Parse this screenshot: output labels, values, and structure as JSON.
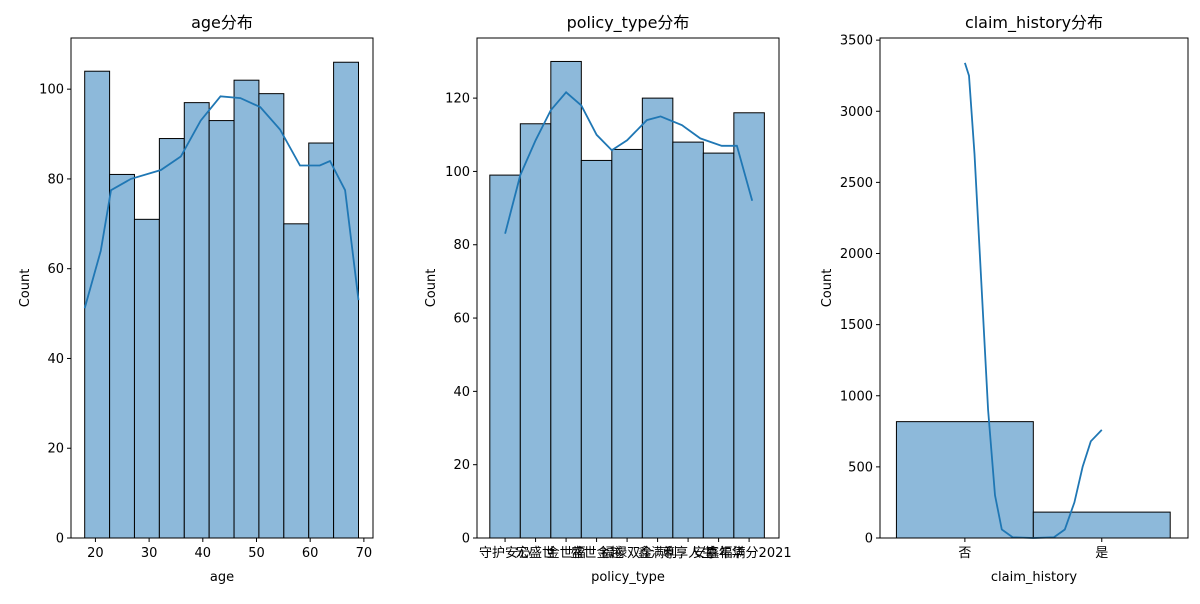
{
  "chart_data": [
    {
      "type": "histogram",
      "title": "age分布",
      "xlabel": "age",
      "ylabel": "Count",
      "bins": [
        18,
        22.64,
        27.27,
        31.91,
        36.55,
        41.18,
        45.82,
        50.45,
        55.09,
        59.73,
        64.36,
        69
      ],
      "values": [
        104,
        81,
        71,
        89,
        97,
        93,
        102,
        99,
        70,
        88,
        106
      ],
      "color": "#8db9da",
      "line_color": "#1f77b4",
      "kde": {
        "x": [
          18,
          21,
          22.9,
          26.6,
          32.2,
          35.9,
          39.6,
          43.3,
          47,
          50.7,
          54.4,
          58.1,
          61.8,
          63.7,
          66.5,
          69
        ],
        "values": [
          51.2,
          64,
          77.5,
          80,
          82,
          85,
          93,
          98.4,
          98,
          96,
          91,
          83,
          83,
          84,
          77.5,
          53
        ]
      },
      "xlim": [
        15.45,
        71.7
      ],
      "xticks": [
        20,
        30,
        40,
        50,
        60,
        70
      ],
      "ylim": [
        0,
        111.4
      ],
      "yticks": [
        0,
        20,
        40,
        60,
        80,
        100
      ]
    },
    {
      "type": "bar",
      "title": "policy_type分布",
      "xlabel": "policy_type",
      "ylabel": "Count",
      "categories": [
        "守护安心",
        "宏盛世",
        "金世福",
        "盛世金越",
        "福禄双全",
        "鑫满利",
        "尊享人生",
        "安享年华",
        "鑫福满分2021"
      ],
      "values": [
        99,
        113,
        130,
        103,
        106,
        120,
        108,
        105,
        116
      ],
      "color": "#8db9da",
      "line_color": "#1f77b4",
      "kde": {
        "x": [
          0,
          0.5,
          1,
          1.5,
          2,
          2.5,
          3,
          3.5,
          4,
          4.65,
          5.1,
          5.8,
          6.4,
          7.1,
          7.6,
          8.1
        ],
        "values": [
          83,
          99,
          108.5,
          116.7,
          121.6,
          118,
          110,
          105.8,
          108.5,
          114,
          115,
          112.6,
          109,
          107,
          107,
          92
        ]
      },
      "xlim": [
        -0.92,
        8.98
      ],
      "ylim": [
        0,
        136.4
      ],
      "yticks": [
        0,
        20,
        40,
        60,
        80,
        100,
        120
      ]
    },
    {
      "type": "bar",
      "title": "claim_history分布",
      "xlabel": "claim_history",
      "ylabel": "Count",
      "categories": [
        "否",
        "是"
      ],
      "values": [
        818,
        182
      ],
      "color": "#8db9da",
      "line_color": "#1f77b4",
      "kde": {
        "x": [
          0,
          0.03,
          0.07,
          0.12,
          0.17,
          0.22,
          0.27,
          0.35,
          0.5,
          0.65,
          0.73,
          0.8,
          0.86,
          0.92,
          1
        ],
        "values": [
          3340,
          3250,
          2700,
          1800,
          900,
          300,
          60,
          5,
          0,
          5,
          60,
          250,
          500,
          680,
          760
        ]
      },
      "xlim": [
        -0.62,
        1.63
      ],
      "ylim": [
        0,
        3515
      ],
      "yticks": [
        0,
        500,
        1000,
        1500,
        2000,
        2500,
        3000,
        3500
      ]
    }
  ]
}
